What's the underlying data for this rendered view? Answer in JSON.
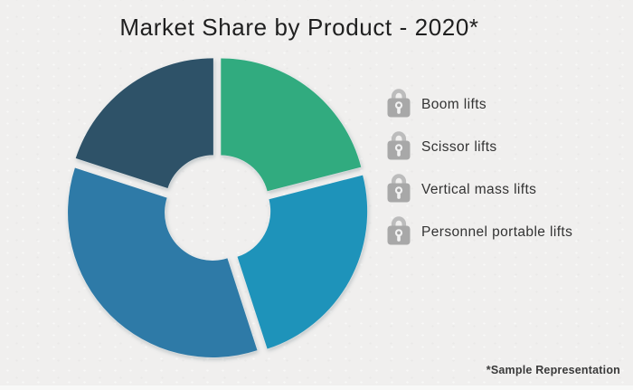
{
  "page": {
    "title": "Market Share by Product - 2020*",
    "footnote": "*Sample Representation",
    "background_color": "#f0efee"
  },
  "chart_data": {
    "type": "pie",
    "subtype": "exploded-donut",
    "title": "Market Share by Product - 2020*",
    "labels": [
      "Boom lifts",
      "Scissor lifts",
      "Vertical mass lifts",
      "Personnel portable lifts"
    ],
    "values": [
      21,
      24,
      35,
      20
    ],
    "value_unit": "percent-estimated-from-arc-angles",
    "data_labels_shown": false,
    "colors": [
      "#31ab7f",
      "#1e93ba",
      "#2e7aa7",
      "#2e5268"
    ],
    "slice_ids": [
      "boom-lifts",
      "scissor-lifts",
      "vertical-mass-lifts",
      "personnel-portable-lifts"
    ],
    "start_angle_deg": 0,
    "clockwise": true,
    "legend_position": "right",
    "annotations": [
      "*Sample Representation"
    ]
  },
  "legend": {
    "icon": "padlock-icon",
    "icon_color": "#a8a8a8",
    "items": [
      {
        "id": "boom-lifts",
        "label": "Boom lifts"
      },
      {
        "id": "scissor-lifts",
        "label": "Scissor lifts"
      },
      {
        "id": "vertical-mass-lifts",
        "label": "Vertical mass lifts"
      },
      {
        "id": "personnel-portable-lifts",
        "label": "Personnel portable lifts"
      }
    ]
  }
}
